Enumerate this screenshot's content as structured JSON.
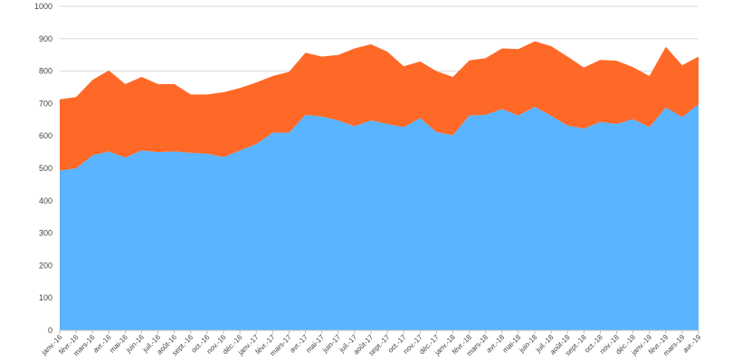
{
  "chart_data": {
    "type": "area",
    "stacked": true,
    "grid": true,
    "ylim": [
      0,
      1000
    ],
    "yticks": [
      0,
      100,
      200,
      300,
      400,
      500,
      600,
      700,
      800,
      900,
      1000
    ],
    "categories": [
      "janv.-16",
      "févr.-16",
      "mars-16",
      "avr.-16",
      "mai-16",
      "juin-16",
      "juil.-16",
      "août-16",
      "sept.-16",
      "oct.-16",
      "nov.-16",
      "déc.-16",
      "janv.-17",
      "févr.-17",
      "mars-17",
      "avr.-17",
      "mai-17",
      "juin-17",
      "juil.-17",
      "août-17",
      "sept.-17",
      "oct.-17",
      "nov.-17",
      "déc.-17",
      "janv.-18",
      "févr.-18",
      "mars-18",
      "avr.-18",
      "mai-18",
      "juin-18",
      "juil.-18",
      "août-18",
      "sept.-18",
      "oct.-18",
      "nov.-18",
      "déc.-18",
      "janv.-19",
      "févr.-19",
      "mars-19",
      "avr.-19"
    ],
    "series": [
      {
        "values": [
          493,
          500,
          540,
          552,
          533,
          555,
          550,
          552,
          548,
          545,
          535,
          555,
          575,
          610,
          610,
          665,
          660,
          648,
          630,
          648,
          637,
          627,
          655,
          612,
          602,
          663,
          665,
          683,
          663,
          690,
          662,
          632,
          623,
          643,
          637,
          652,
          627,
          688,
          658,
          698
        ]
      },
      {
        "values": [
          220,
          220,
          233,
          250,
          227,
          227,
          210,
          208,
          180,
          183,
          200,
          193,
          190,
          175,
          188,
          192,
          185,
          202,
          240,
          235,
          223,
          188,
          175,
          188,
          180,
          170,
          175,
          187,
          205,
          202,
          215,
          213,
          188,
          192,
          195,
          160,
          158,
          187,
          160,
          147
        ]
      }
    ],
    "colors": [
      "#5ab4ff",
      "#ff6928"
    ],
    "xlabel": "",
    "ylabel": ""
  }
}
